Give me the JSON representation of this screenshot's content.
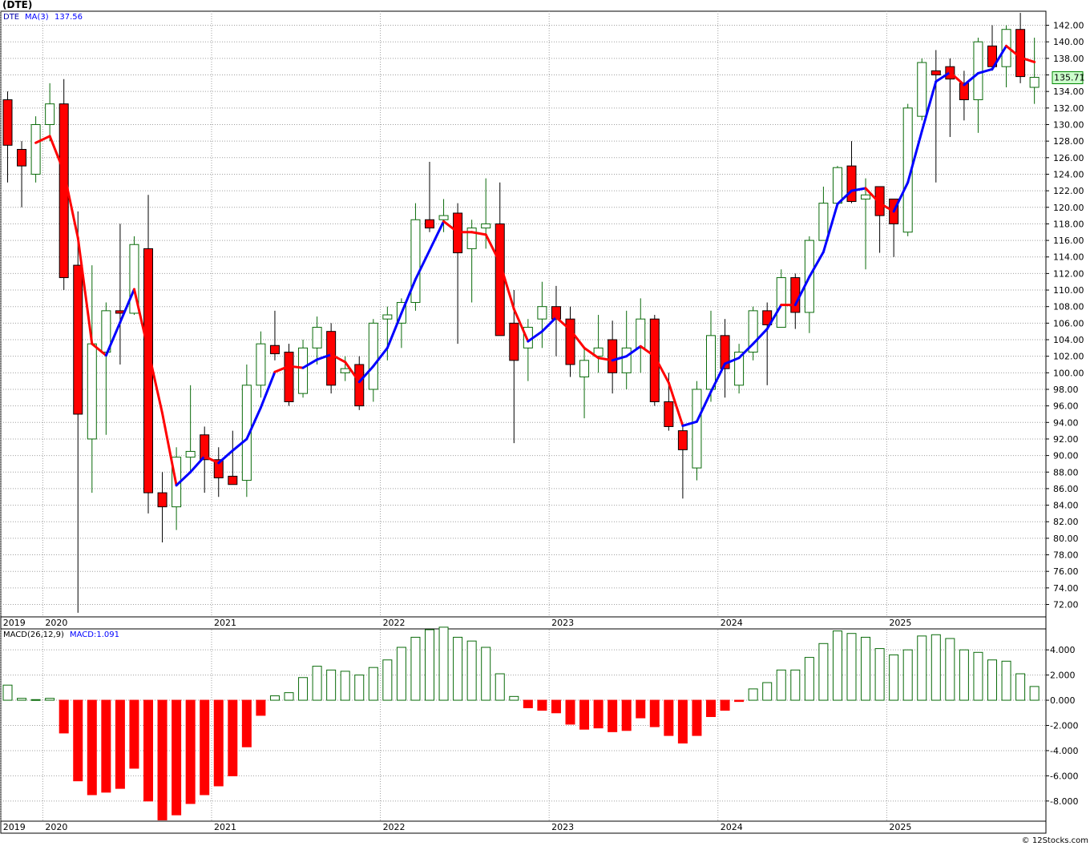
{
  "title": "(DTE)",
  "footer": "© 12Stocks.com",
  "colors": {
    "up": "#0a6b0a",
    "down": "#ff0000",
    "ma_up": "#0000ff",
    "ma_down": "#ff0000",
    "grid": "#a0a0a0",
    "last_price_bg": "#ccffcc"
  },
  "chart_data": [
    {
      "type": "candlestick",
      "interval": "monthly",
      "legend": {
        "ticker": "DTE",
        "ma_label": "MA(3)",
        "ma_value": "137.56"
      },
      "last_price_label": "135.71",
      "ylim": [
        70.5,
        143.7
      ],
      "yticks": [
        72,
        74,
        76,
        78,
        80,
        82,
        84,
        86,
        88,
        90,
        92,
        94,
        96,
        98,
        100,
        102,
        104,
        106,
        108,
        110,
        112,
        114,
        116,
        118,
        120,
        122,
        124,
        126,
        128,
        130,
        132,
        134,
        136,
        138,
        140,
        142
      ],
      "ytick_labels": [
        "72.00",
        "74.00",
        "76.00",
        "78.00",
        "80.00",
        "82.00",
        "84.00",
        "86.00",
        "88.00",
        "90.00",
        "92.00",
        "94.00",
        "96.00",
        "98.00",
        "100.00",
        "102.00",
        "104.00",
        "106.00",
        "108.00",
        "110.00",
        "112.00",
        "114.00",
        "116.00",
        "118.00",
        "120.00",
        "122.00",
        "124.00",
        "126.00",
        "128.00",
        "130.00",
        "132.00",
        "134.00",
        "136.00",
        "138.00",
        "140.00",
        "142.00"
      ],
      "x_labels": [
        {
          "label": "2019",
          "index": -0.5
        },
        {
          "label": "2020",
          "index": 2.5
        },
        {
          "label": "2021",
          "index": 14.5
        },
        {
          "label": "2022",
          "index": 26.5
        },
        {
          "label": "2023",
          "index": 38.5
        },
        {
          "label": "2024",
          "index": 50.5
        },
        {
          "label": "2025",
          "index": 62.5
        }
      ],
      "candles": [
        {
          "o": 133,
          "h": 134,
          "l": 123,
          "c": 127.5
        },
        {
          "o": 127,
          "h": 128,
          "l": 120,
          "c": 125
        },
        {
          "o": 124,
          "h": 131,
          "l": 123,
          "c": 130
        },
        {
          "o": 130,
          "h": 135,
          "l": 128,
          "c": 132.5
        },
        {
          "o": 132.5,
          "h": 135.5,
          "l": 110,
          "c": 111.5
        },
        {
          "o": 113,
          "h": 119.5,
          "l": 71,
          "c": 95
        },
        {
          "o": 92,
          "h": 113,
          "l": 85.5,
          "c": 103.5
        },
        {
          "o": 102.5,
          "h": 108.5,
          "l": 92.5,
          "c": 107.5
        },
        {
          "o": 107.5,
          "h": 118,
          "l": 101,
          "c": 107.2
        },
        {
          "o": 107.2,
          "h": 116.5,
          "l": 107,
          "c": 115.5
        },
        {
          "o": 115,
          "h": 121.5,
          "l": 83,
          "c": 85.5
        },
        {
          "o": 85.5,
          "h": 88,
          "l": 79.5,
          "c": 83.8
        },
        {
          "o": 83.8,
          "h": 91,
          "l": 81,
          "c": 89.8
        },
        {
          "o": 89.8,
          "h": 98.5,
          "l": 88,
          "c": 90.5
        },
        {
          "o": 92.5,
          "h": 93.5,
          "l": 85.5,
          "c": 89.5
        },
        {
          "o": 89.5,
          "h": 91,
          "l": 85,
          "c": 87.3
        },
        {
          "o": 87.5,
          "h": 93,
          "l": 86.5,
          "c": 86.5
        },
        {
          "o": 87,
          "h": 101,
          "l": 85,
          "c": 98.5
        },
        {
          "o": 98.5,
          "h": 105,
          "l": 97,
          "c": 103.5
        },
        {
          "o": 103.3,
          "h": 107.5,
          "l": 101.5,
          "c": 102.3
        },
        {
          "o": 102.5,
          "h": 103.5,
          "l": 96,
          "c": 96.5
        },
        {
          "o": 97.5,
          "h": 104,
          "l": 97,
          "c": 103
        },
        {
          "o": 103,
          "h": 106.8,
          "l": 101,
          "c": 105.5
        },
        {
          "o": 105,
          "h": 106,
          "l": 97.5,
          "c": 98.5
        },
        {
          "o": 100,
          "h": 102,
          "l": 99,
          "c": 100.5
        },
        {
          "o": 101,
          "h": 102,
          "l": 95.5,
          "c": 96
        },
        {
          "o": 98,
          "h": 106.5,
          "l": 96.5,
          "c": 106
        },
        {
          "o": 106.5,
          "h": 108,
          "l": 101.5,
          "c": 107
        },
        {
          "o": 106,
          "h": 109,
          "l": 103,
          "c": 108.5
        },
        {
          "o": 108.5,
          "h": 120.5,
          "l": 107.5,
          "c": 118.5
        },
        {
          "o": 118.5,
          "h": 125.5,
          "l": 117,
          "c": 117.5
        },
        {
          "o": 118.5,
          "h": 121,
          "l": 117,
          "c": 119
        },
        {
          "o": 119.3,
          "h": 120.5,
          "l": 103.5,
          "c": 114.5
        },
        {
          "o": 115,
          "h": 118.5,
          "l": 108.5,
          "c": 117.5
        },
        {
          "o": 117.5,
          "h": 123.5,
          "l": 115,
          "c": 118
        },
        {
          "o": 118,
          "h": 123,
          "l": 104.5,
          "c": 104.5
        },
        {
          "o": 106,
          "h": 110,
          "l": 91.5,
          "c": 101.5
        },
        {
          "o": 103,
          "h": 106.5,
          "l": 99,
          "c": 105.5
        },
        {
          "o": 106.5,
          "h": 111,
          "l": 103,
          "c": 108
        },
        {
          "o": 108,
          "h": 110.5,
          "l": 102,
          "c": 106.5
        },
        {
          "o": 106.5,
          "h": 108,
          "l": 99.5,
          "c": 101
        },
        {
          "o": 99.5,
          "h": 103,
          "l": 94.5,
          "c": 101.5
        },
        {
          "o": 102,
          "h": 107,
          "l": 100,
          "c": 103
        },
        {
          "o": 104,
          "h": 106.3,
          "l": 97.5,
          "c": 100
        },
        {
          "o": 100,
          "h": 107.5,
          "l": 98,
          "c": 103
        },
        {
          "o": 103,
          "h": 109,
          "l": 100,
          "c": 106.5
        },
        {
          "o": 106.5,
          "h": 107,
          "l": 96,
          "c": 96.5
        },
        {
          "o": 96.5,
          "h": 100,
          "l": 93,
          "c": 93.5
        },
        {
          "o": 93,
          "h": 94,
          "l": 84.8,
          "c": 90.7
        },
        {
          "o": 88.5,
          "h": 99,
          "l": 87,
          "c": 98
        },
        {
          "o": 98,
          "h": 107.5,
          "l": 96.5,
          "c": 104.5
        },
        {
          "o": 104.5,
          "h": 106.5,
          "l": 97,
          "c": 100.5
        },
        {
          "o": 98.5,
          "h": 103.5,
          "l": 97.5,
          "c": 102.5
        },
        {
          "o": 102.5,
          "h": 108,
          "l": 101.5,
          "c": 107.5
        },
        {
          "o": 107.5,
          "h": 108.5,
          "l": 98.5,
          "c": 105.8
        },
        {
          "o": 105.5,
          "h": 112.5,
          "l": 105.5,
          "c": 111.5
        },
        {
          "o": 111.5,
          "h": 112,
          "l": 105.3,
          "c": 107.3
        },
        {
          "o": 107.3,
          "h": 116.5,
          "l": 104.8,
          "c": 116
        },
        {
          "o": 116,
          "h": 122.5,
          "l": 116,
          "c": 120.5
        },
        {
          "o": 120.5,
          "h": 125,
          "l": 120.5,
          "c": 124.8
        },
        {
          "o": 125,
          "h": 128,
          "l": 120.5,
          "c": 120.7
        },
        {
          "o": 121,
          "h": 123.5,
          "l": 112.5,
          "c": 121.5
        },
        {
          "o": 122.5,
          "h": 122.5,
          "l": 114.5,
          "c": 119
        },
        {
          "o": 121,
          "h": 121,
          "l": 114,
          "c": 118
        },
        {
          "o": 117,
          "h": 132.5,
          "l": 116.5,
          "c": 132
        },
        {
          "o": 131,
          "h": 138,
          "l": 130.5,
          "c": 137.5
        },
        {
          "o": 136.5,
          "h": 139,
          "l": 123,
          "c": 136
        },
        {
          "o": 137,
          "h": 138,
          "l": 128.5,
          "c": 135.5
        },
        {
          "o": 135,
          "h": 136.5,
          "l": 130.5,
          "c": 133
        },
        {
          "o": 133,
          "h": 140.5,
          "l": 129,
          "c": 140
        },
        {
          "o": 139.5,
          "h": 142,
          "l": 136.5,
          "c": 137
        },
        {
          "o": 137,
          "h": 142,
          "l": 134.5,
          "c": 141.5
        },
        {
          "o": 141.5,
          "h": 143.5,
          "l": 135,
          "c": 135.8
        },
        {
          "o": 134.5,
          "h": 140.5,
          "l": 132.5,
          "c": 135.71
        }
      ],
      "ma3": [
        null,
        null,
        127.8,
        128.6,
        124.3,
        116.3,
        103.5,
        102.1,
        106.1,
        110.1,
        102.7,
        95.1,
        86.4,
        88.0,
        89.9,
        89.1,
        90.6,
        92.0,
        95.8,
        100.1,
        100.8,
        100.6,
        101.6,
        102.2,
        101.3,
        98.9,
        100.8,
        103.0,
        107.2,
        111.3,
        114.8,
        118.3,
        117.0,
        117.0,
        116.7,
        113.3,
        107.7,
        103.8,
        105.0,
        106.7,
        105.2,
        103.0,
        101.8,
        101.5,
        102.0,
        103.2,
        102.0,
        98.8,
        93.6,
        94.1,
        97.7,
        101.1,
        101.8,
        103.5,
        105.3,
        108.2,
        108.2,
        111.6,
        114.6,
        120.4,
        122.0,
        122.3,
        120.5,
        119.5,
        123.0,
        129.2,
        135.2,
        136.3,
        134.8,
        136.2,
        136.7,
        139.5,
        138.1,
        137.56
      ],
      "ma_colors": [
        null,
        null,
        "r",
        "r",
        "r",
        "r",
        "r",
        "r",
        "b",
        "b",
        "r",
        "r",
        "r",
        "b",
        "b",
        "r",
        "b",
        "b",
        "b",
        "b",
        "r",
        "r",
        "b",
        "b",
        "r",
        "r",
        "b",
        "b",
        "b",
        "b",
        "b",
        "b",
        "r",
        "r",
        "r",
        "r",
        "r",
        "r",
        "b",
        "b",
        "r",
        "r",
        "r",
        "r",
        "b",
        "b",
        "r",
        "r",
        "r",
        "b",
        "b",
        "b",
        "b",
        "b",
        "b",
        "b",
        "r",
        "b",
        "b",
        "b",
        "b",
        "b",
        "r",
        "r",
        "b",
        "b",
        "b",
        "b",
        "r",
        "b",
        "b",
        "b",
        "r",
        "r"
      ]
    },
    {
      "type": "bar",
      "legend": {
        "label": "MACD(26,12,9)",
        "value_label": "MACD:1.091"
      },
      "ylim": [
        -9.6,
        5.6
      ],
      "yticks": [
        -8,
        -6,
        -4,
        -2,
        0,
        2,
        4
      ],
      "ytick_labels": [
        "-8.000",
        "-6.000",
        "-4.000",
        "-2.000",
        "0.000",
        "2.000",
        "4.000"
      ],
      "x_labels": [
        {
          "label": "2019",
          "index": -0.5
        },
        {
          "label": "2020",
          "index": 2.5
        },
        {
          "label": "2021",
          "index": 14.5
        },
        {
          "label": "2022",
          "index": 26.5
        },
        {
          "label": "2023",
          "index": 38.5
        },
        {
          "label": "2024",
          "index": 50.5
        },
        {
          "label": "2025",
          "index": 62.5
        }
      ],
      "values": [
        1.2,
        0.15,
        0.05,
        0.15,
        -2.6,
        -6.4,
        -7.5,
        -7.3,
        -7.0,
        -5.4,
        -8.0,
        -9.5,
        -9.1,
        -8.2,
        -7.5,
        -6.8,
        -6.0,
        -3.7,
        -1.2,
        0.35,
        0.6,
        1.8,
        2.7,
        2.4,
        2.3,
        2.0,
        2.6,
        3.2,
        4.2,
        5.0,
        5.6,
        5.8,
        5.0,
        4.7,
        4.2,
        2.1,
        0.3,
        -0.6,
        -0.8,
        -1.0,
        -1.9,
        -2.3,
        -2.2,
        -2.5,
        -2.4,
        -1.4,
        -2.1,
        -2.8,
        -3.4,
        -2.8,
        -1.3,
        -0.8,
        -0.1,
        0.9,
        1.4,
        2.4,
        2.4,
        3.4,
        4.5,
        5.5,
        5.3,
        5.0,
        4.1,
        3.6,
        4.0,
        5.1,
        5.2,
        4.9,
        4.0,
        3.8,
        3.2,
        3.1,
        2.1,
        1.091
      ]
    }
  ]
}
